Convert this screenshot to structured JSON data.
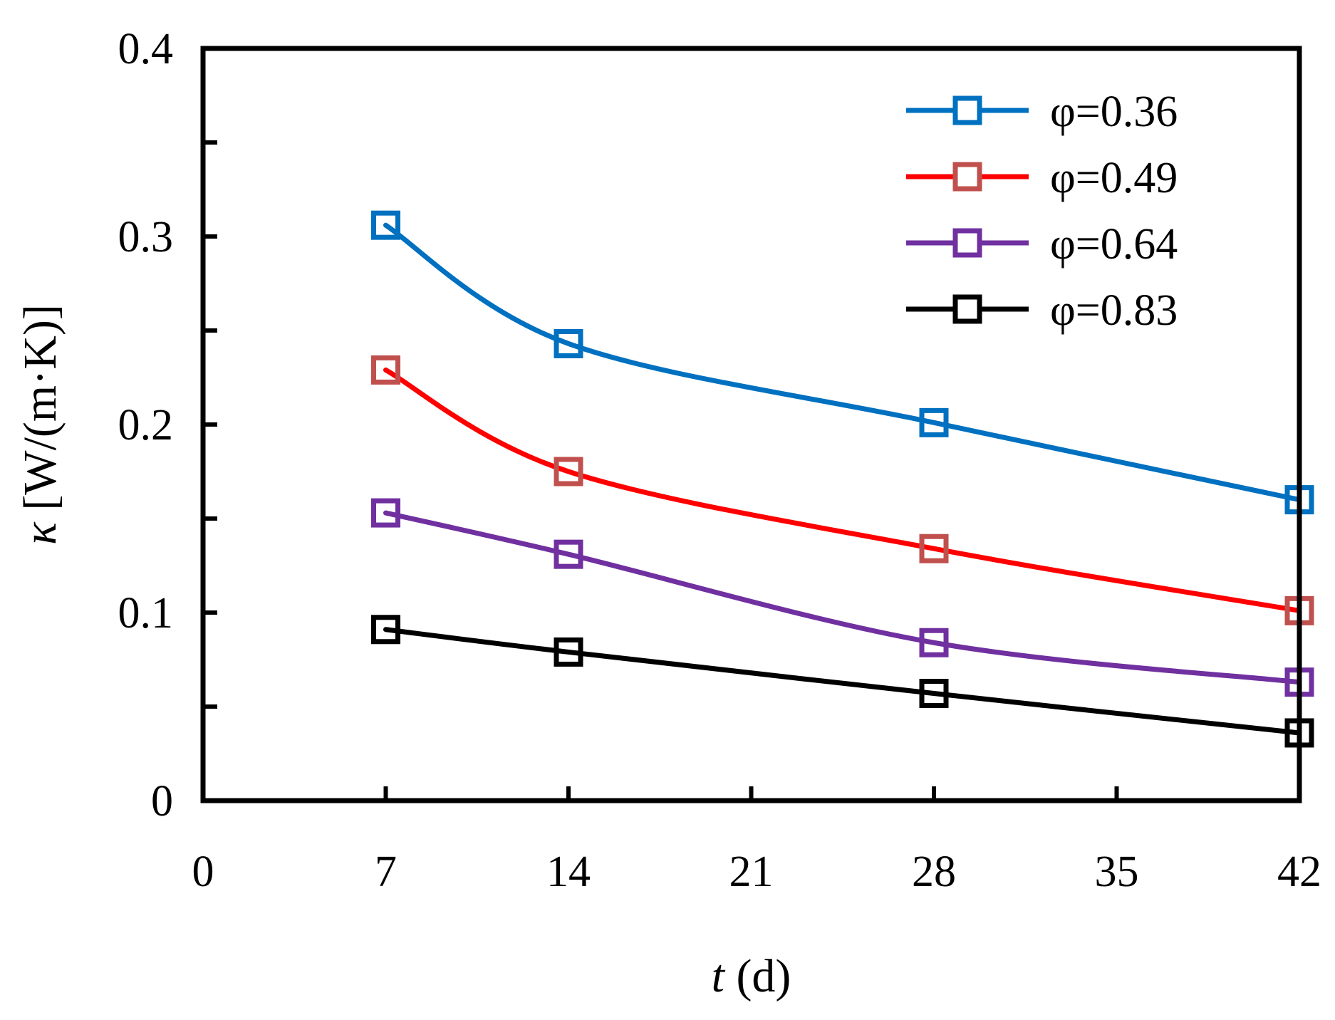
{
  "chart_data": {
    "type": "line",
    "title": "",
    "xlabel": "t (d)",
    "xlabel_var": "t",
    "xlabel_unit": " (d)",
    "ylabel": "κ [W/(m·K)]",
    "ylabel_var": "κ",
    "ylabel_unit": " [W/(m·K)]",
    "xlim": [
      0,
      42
    ],
    "ylim": [
      0,
      0.4
    ],
    "xticks": [
      0,
      7,
      14,
      21,
      28,
      35,
      42
    ],
    "xtick_labels": [
      "0",
      "7",
      "14",
      "21",
      "28",
      "35",
      "42"
    ],
    "yticks": [
      0,
      0.1,
      0.2,
      0.3,
      0.4
    ],
    "ytick_labels": [
      "0",
      "0.1",
      "0.2",
      "0.3",
      "0.4"
    ],
    "yminor_ticks": [
      0.05,
      0.15,
      0.25,
      0.35
    ],
    "grid": false,
    "legend_position": "top-right",
    "marker": "open-square",
    "x": [
      7,
      14,
      28,
      42
    ],
    "series": [
      {
        "name": "φ=0.36",
        "line_color": "#0070C0",
        "marker_color": "#0070C0",
        "values": [
          0.306,
          0.243,
          0.201,
          0.16
        ]
      },
      {
        "name": "φ=0.49",
        "line_color": "#FF0000",
        "marker_color": "#C0504D",
        "values": [
          0.229,
          0.175,
          0.134,
          0.101
        ]
      },
      {
        "name": "φ=0.64",
        "line_color": "#7030A0",
        "marker_color": "#7030A0",
        "values": [
          0.153,
          0.131,
          0.084,
          0.063
        ]
      },
      {
        "name": "φ=0.83",
        "line_color": "#000000",
        "marker_color": "#000000",
        "values": [
          0.091,
          0.079,
          0.057,
          0.036
        ]
      }
    ]
  }
}
